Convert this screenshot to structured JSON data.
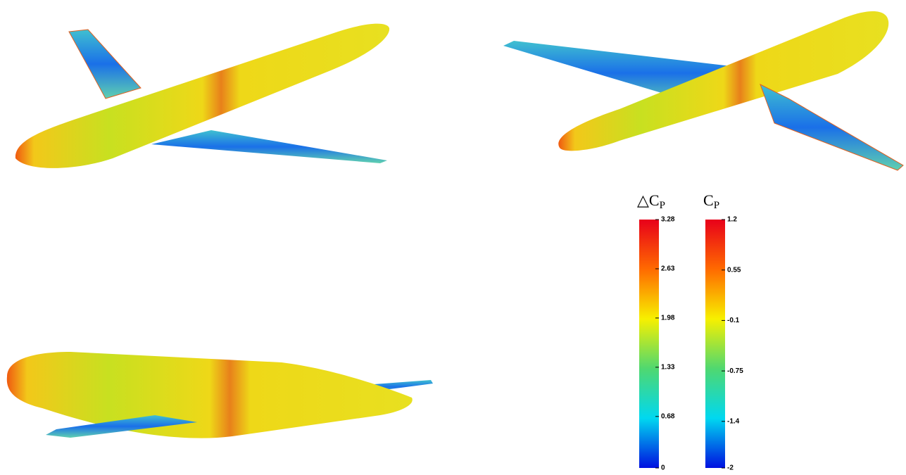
{
  "colorbars": [
    {
      "title": "△C",
      "title_sub": "P",
      "ticks": [
        3.28,
        2.63,
        1.98,
        1.33,
        0.68,
        0
      ]
    },
    {
      "title": "C",
      "title_sub": "P",
      "ticks": [
        1.2,
        0.55,
        -0.1,
        -0.75,
        -1.4,
        -2
      ]
    }
  ]
}
